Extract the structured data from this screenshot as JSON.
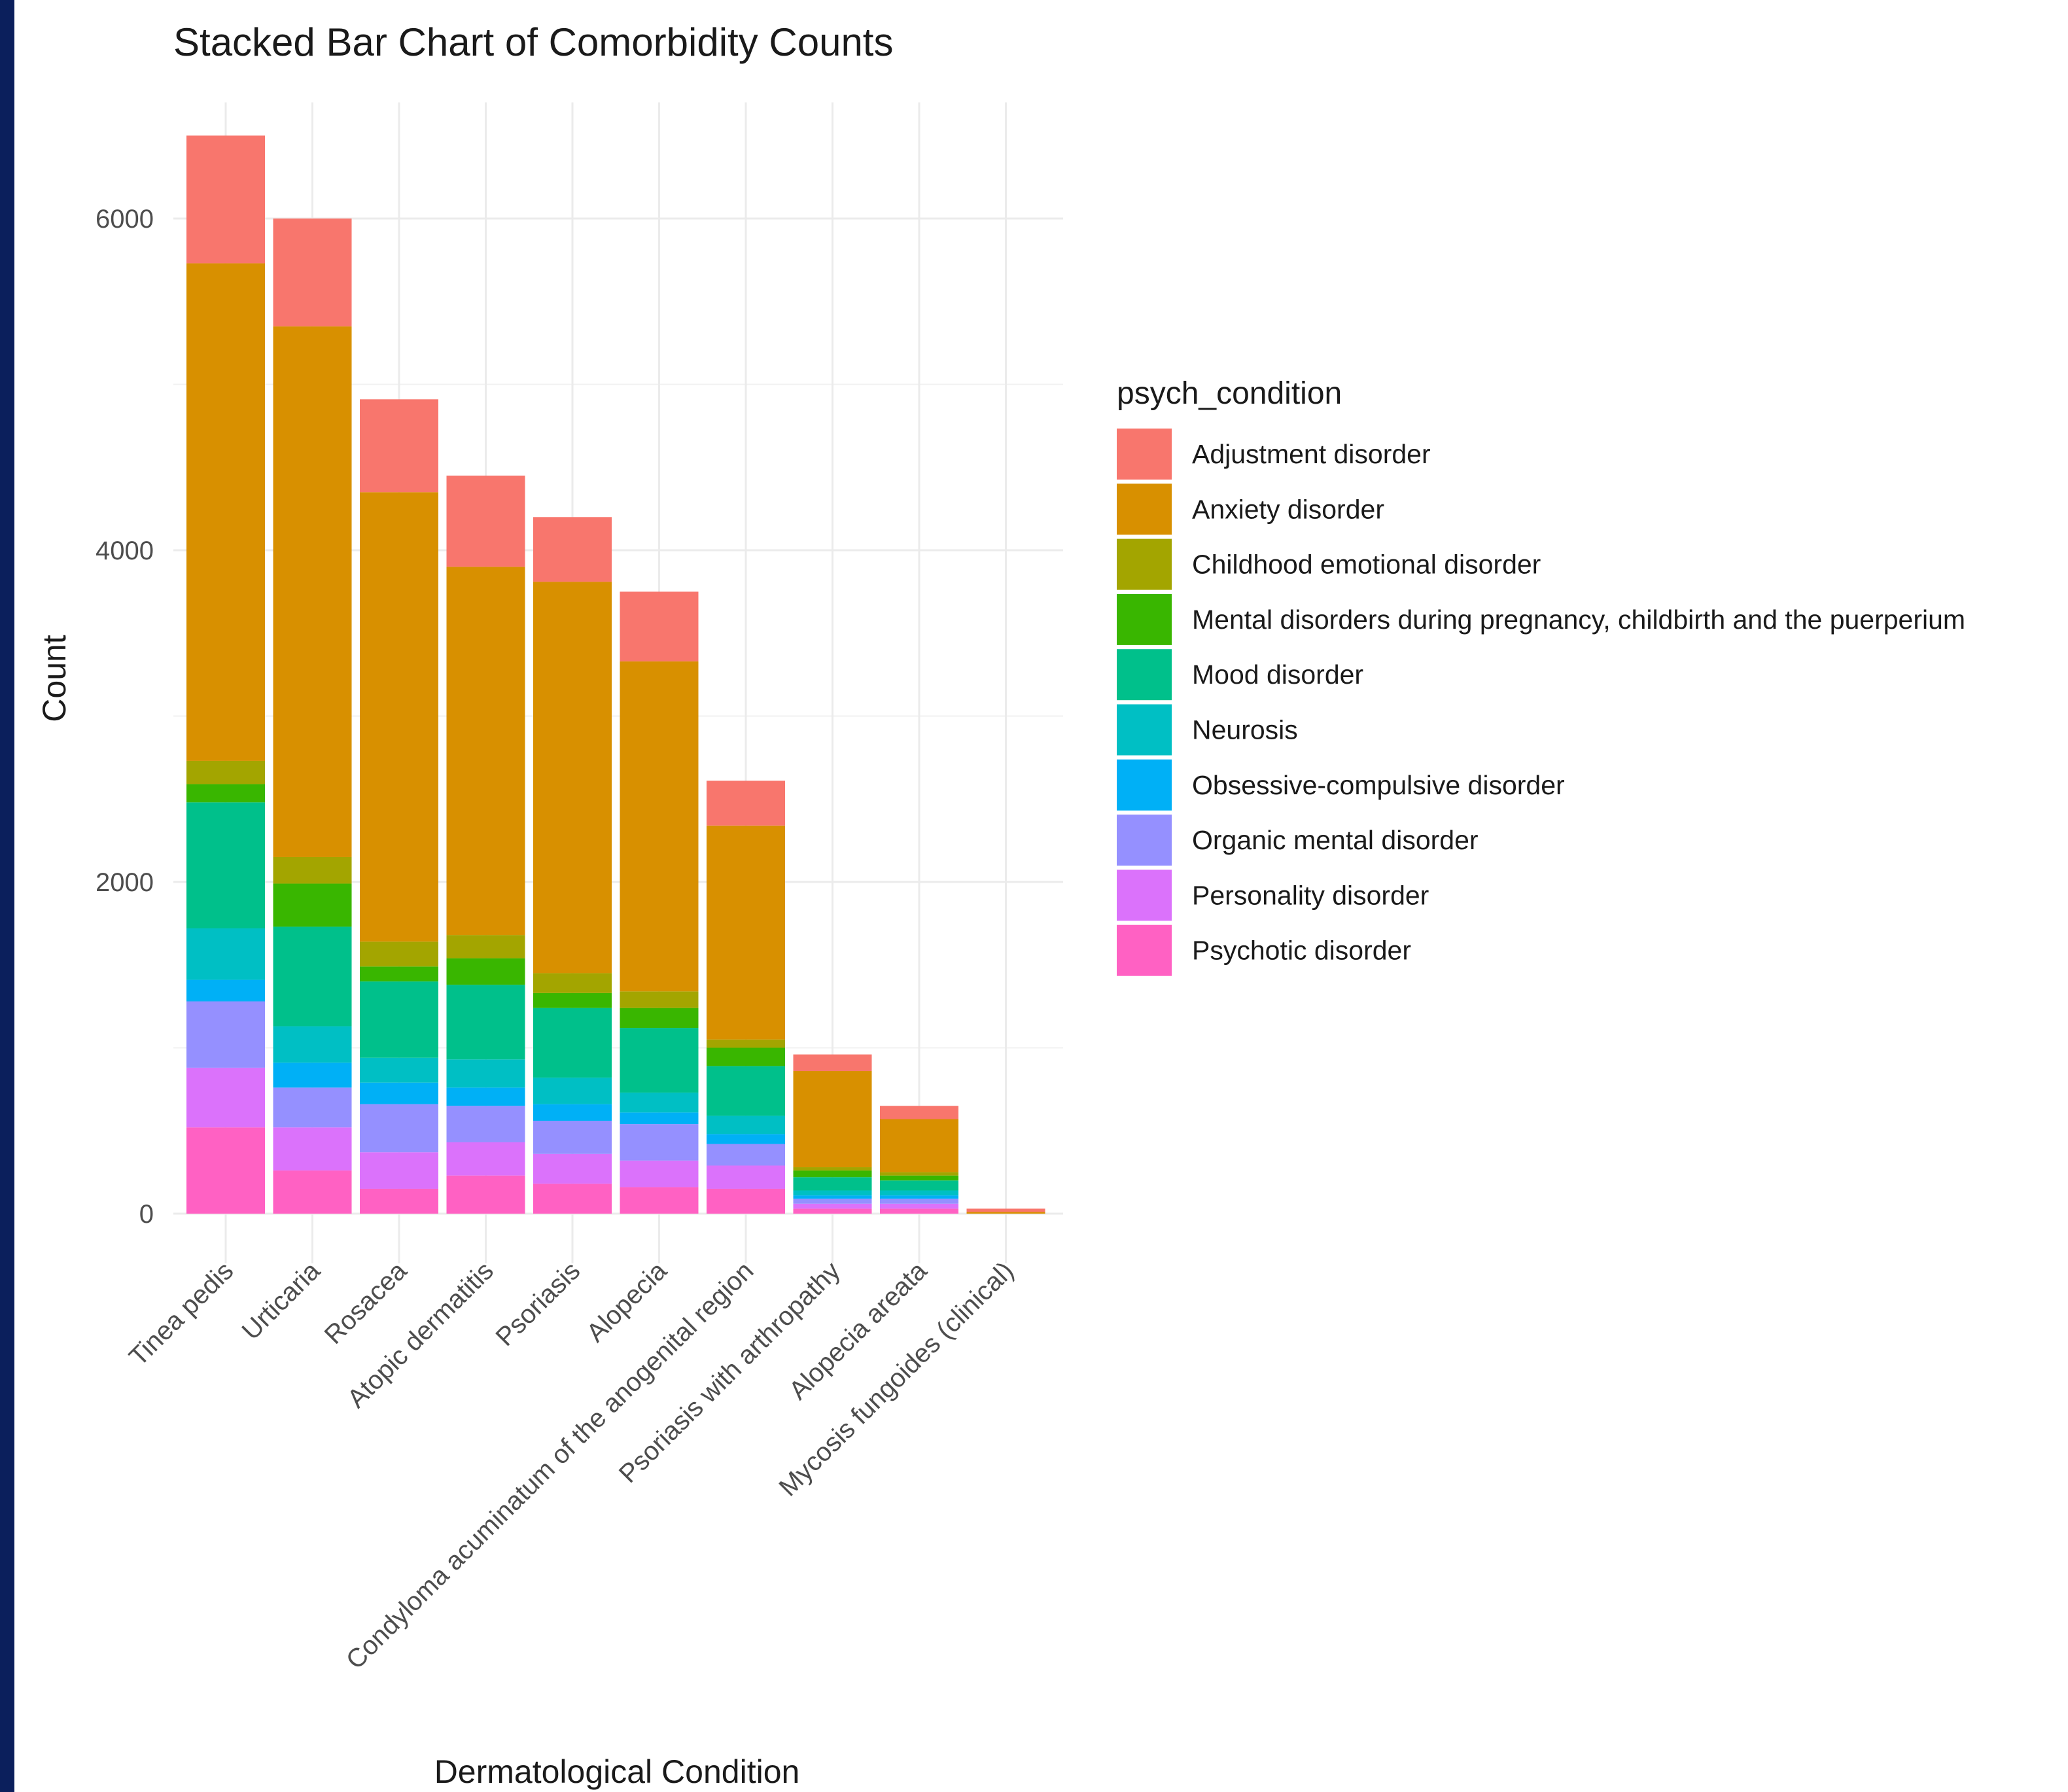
{
  "chart_data": {
    "type": "bar",
    "stacked": true,
    "title": "Stacked Bar Chart of Comorbidity Counts",
    "xlabel": "Dermatological Condition",
    "ylabel": "Count",
    "ylim": [
      -300,
      6700
    ],
    "yticks": [
      0,
      2000,
      4000,
      6000
    ],
    "grid": true,
    "legend_title": "psych_condition",
    "legend_position": "right",
    "categories": [
      "Tinea pedis",
      "Urticaria",
      "Rosacea",
      "Atopic dermatitis",
      "Psoriasis",
      "Alopecia",
      "Condyloma acuminatum of the anogenital region",
      "Psoriasis with arthropathy",
      "Alopecia areata",
      "Mycosis fungoides (clinical)"
    ],
    "series": [
      {
        "name": "Psychotic disorder",
        "color": "#FF61C3",
        "values": [
          520,
          260,
          150,
          230,
          180,
          160,
          150,
          30,
          30,
          0
        ]
      },
      {
        "name": "Personality disorder",
        "color": "#DB72FB",
        "values": [
          360,
          260,
          220,
          200,
          180,
          160,
          140,
          30,
          30,
          0
        ]
      },
      {
        "name": "Organic mental disorder",
        "color": "#9590FF",
        "values": [
          400,
          240,
          290,
          220,
          200,
          220,
          130,
          30,
          30,
          0
        ]
      },
      {
        "name": "Obsessive-compulsive disorder",
        "color": "#00B0F6",
        "values": [
          130,
          150,
          130,
          110,
          100,
          70,
          60,
          20,
          20,
          0
        ]
      },
      {
        "name": "Neurosis",
        "color": "#00BFC4",
        "values": [
          310,
          220,
          150,
          170,
          160,
          120,
          110,
          30,
          30,
          0
        ]
      },
      {
        "name": "Mood disorder",
        "color": "#00C08B",
        "values": [
          760,
          600,
          460,
          450,
          420,
          390,
          300,
          80,
          60,
          0
        ]
      },
      {
        "name": "Mental disorders during pregnancy, childbirth and the puerperium",
        "color": "#39B600",
        "values": [
          110,
          260,
          90,
          160,
          90,
          120,
          110,
          40,
          30,
          0
        ]
      },
      {
        "name": "Childhood emotional disorder",
        "color": "#A3A500",
        "values": [
          140,
          160,
          150,
          140,
          120,
          100,
          50,
          20,
          20,
          0
        ]
      },
      {
        "name": "Anxiety disorder",
        "color": "#D89000",
        "values": [
          3000,
          3200,
          2710,
          2220,
          2360,
          1990,
          1290,
          580,
          320,
          10
        ]
      },
      {
        "name": "Adjustment disorder",
        "color": "#F8766D",
        "values": [
          770,
          650,
          560,
          550,
          390,
          420,
          270,
          100,
          80,
          20
        ]
      }
    ],
    "legend_order": [
      "Adjustment disorder",
      "Anxiety disorder",
      "Childhood emotional disorder",
      "Mental disorders during pregnancy, childbirth and the puerperium",
      "Mood disorder",
      "Neurosis",
      "Obsessive-compulsive disorder",
      "Organic mental disorder",
      "Personality disorder",
      "Psychotic disorder"
    ]
  }
}
